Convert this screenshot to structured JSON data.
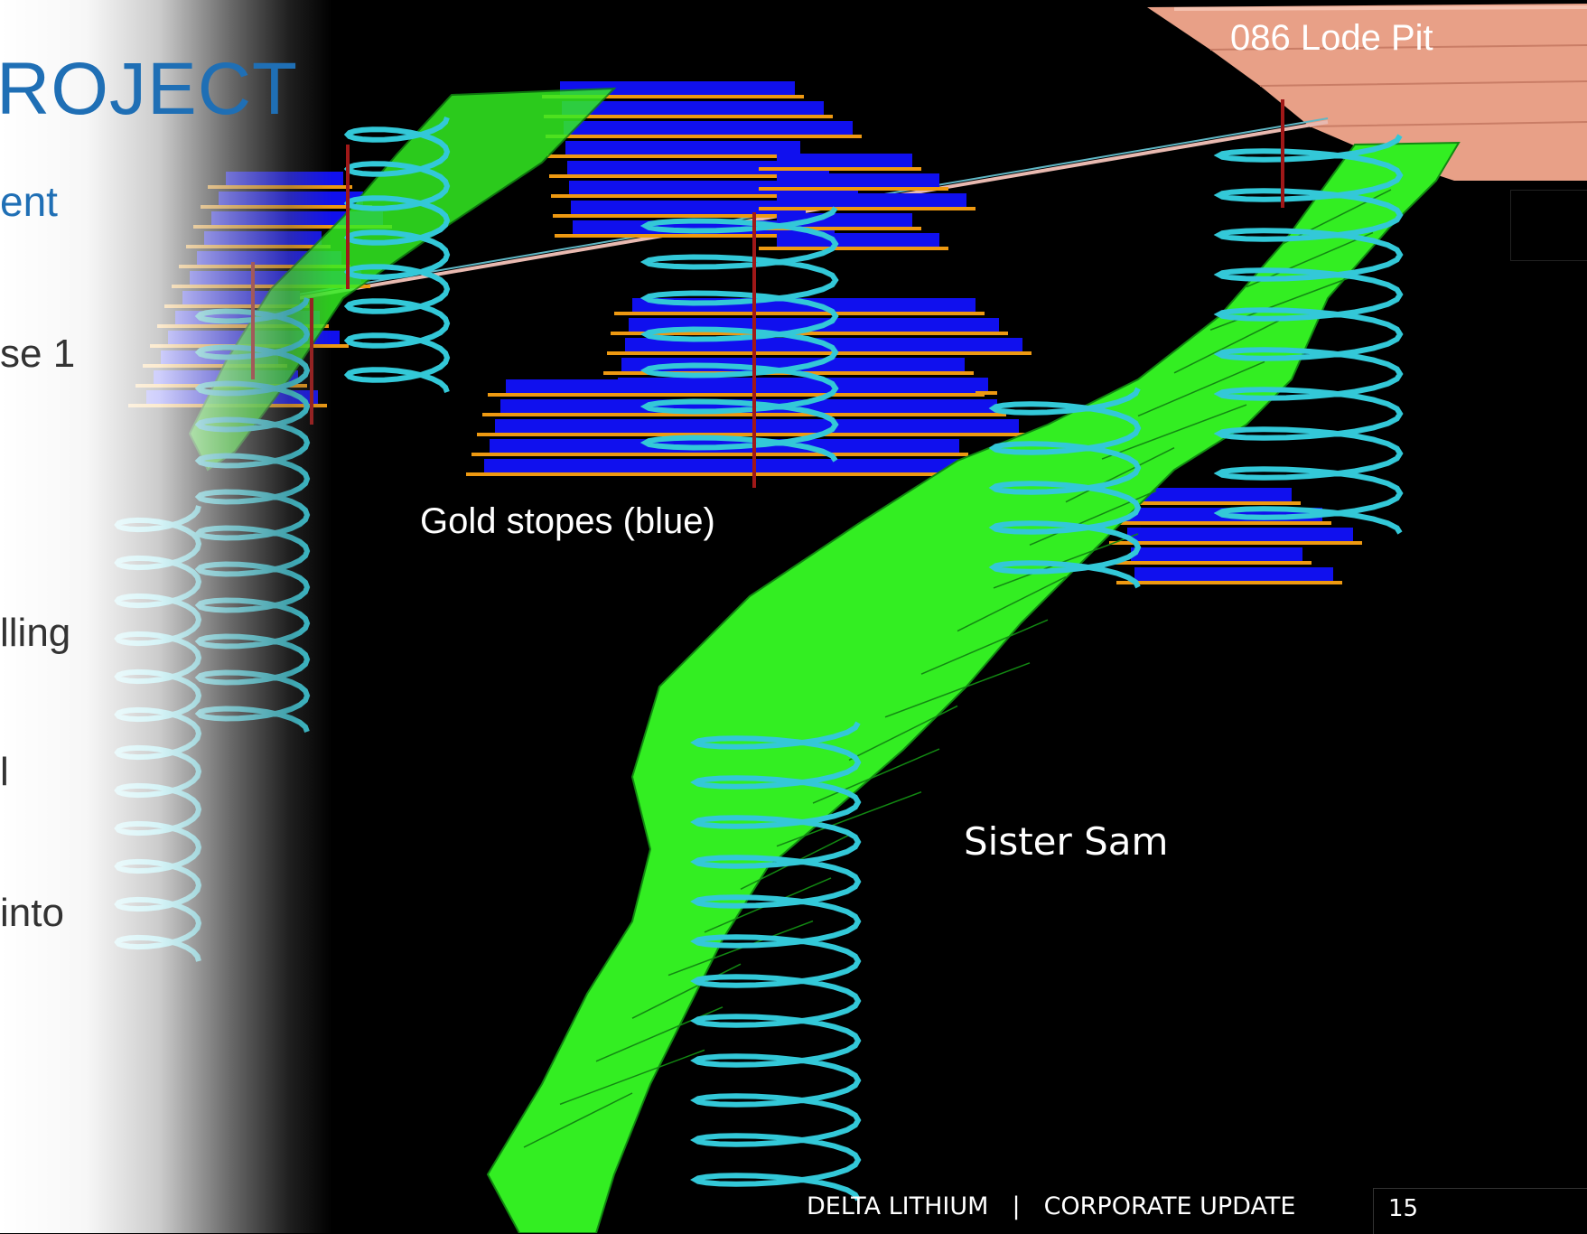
{
  "slide": {
    "title": "ROJECT",
    "subtitle": "ent",
    "fragments": [
      "se 1",
      "lling",
      "l",
      "into"
    ]
  },
  "scene_labels": {
    "pit": "086 Lode Pit",
    "gold": "Gold stopes (blue)",
    "sister": "Sister Sam"
  },
  "footer": {
    "company": "DELTA LITHIUM",
    "separator": "|",
    "section": "CORPORATE UPDATE",
    "page": "15"
  },
  "colors": {
    "orebody": "#33ee22",
    "stopes": "#1010ee",
    "levels": "#ee9911",
    "decline": "#33c8d8",
    "pit": "#e9a08a",
    "title_blue": "#1f6fb5"
  }
}
